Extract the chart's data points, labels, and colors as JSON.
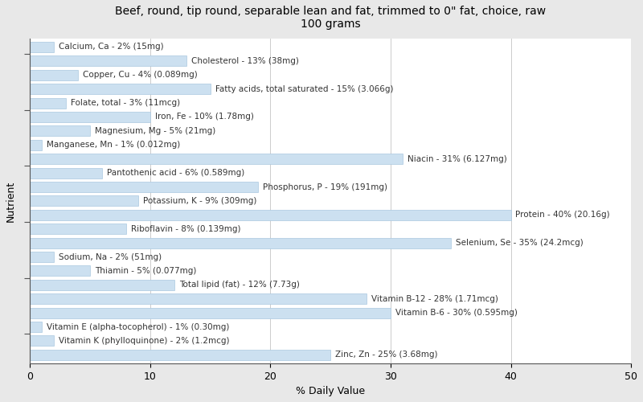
{
  "title": "Beef, round, tip round, separable lean and fat, trimmed to 0\" fat, choice, raw\n100 grams",
  "xlabel": "% Daily Value",
  "ylabel": "Nutrient",
  "xlim": [
    0,
    50
  ],
  "fig_background_color": "#e8e8e8",
  "ax_background_color": "#ffffff",
  "bar_color": "#cce0f0",
  "bar_edge_color": "#aac8e0",
  "nutrients": [
    {
      "label": "Calcium, Ca - 2% (15mg)",
      "value": 2
    },
    {
      "label": "Cholesterol - 13% (38mg)",
      "value": 13
    },
    {
      "label": "Copper, Cu - 4% (0.089mg)",
      "value": 4
    },
    {
      "label": "Fatty acids, total saturated - 15% (3.066g)",
      "value": 15
    },
    {
      "label": "Folate, total - 3% (11mcg)",
      "value": 3
    },
    {
      "label": "Iron, Fe - 10% (1.78mg)",
      "value": 10
    },
    {
      "label": "Magnesium, Mg - 5% (21mg)",
      "value": 5
    },
    {
      "label": "Manganese, Mn - 1% (0.012mg)",
      "value": 1
    },
    {
      "label": "Niacin - 31% (6.127mg)",
      "value": 31
    },
    {
      "label": "Pantothenic acid - 6% (0.589mg)",
      "value": 6
    },
    {
      "label": "Phosphorus, P - 19% (191mg)",
      "value": 19
    },
    {
      "label": "Potassium, K - 9% (309mg)",
      "value": 9
    },
    {
      "label": "Protein - 40% (20.16g)",
      "value": 40
    },
    {
      "label": "Riboflavin - 8% (0.139mg)",
      "value": 8
    },
    {
      "label": "Selenium, Se - 35% (24.2mcg)",
      "value": 35
    },
    {
      "label": "Sodium, Na - 2% (51mg)",
      "value": 2
    },
    {
      "label": "Thiamin - 5% (0.077mg)",
      "value": 5
    },
    {
      "label": "Total lipid (fat) - 12% (7.73g)",
      "value": 12
    },
    {
      "label": "Vitamin B-12 - 28% (1.71mcg)",
      "value": 28
    },
    {
      "label": "Vitamin B-6 - 30% (0.595mg)",
      "value": 30
    },
    {
      "label": "Vitamin E (alpha-tocopherol) - 1% (0.30mg)",
      "value": 1
    },
    {
      "label": "Vitamin K (phylloquinone) - 2% (1.2mcg)",
      "value": 2
    },
    {
      "label": "Zinc, Zn - 25% (3.68mg)",
      "value": 25
    }
  ],
  "xticks": [
    0,
    10,
    20,
    30,
    40,
    50
  ],
  "title_fontsize": 10,
  "label_fontsize": 7.5,
  "axis_label_fontsize": 9,
  "tick_fontsize": 9
}
